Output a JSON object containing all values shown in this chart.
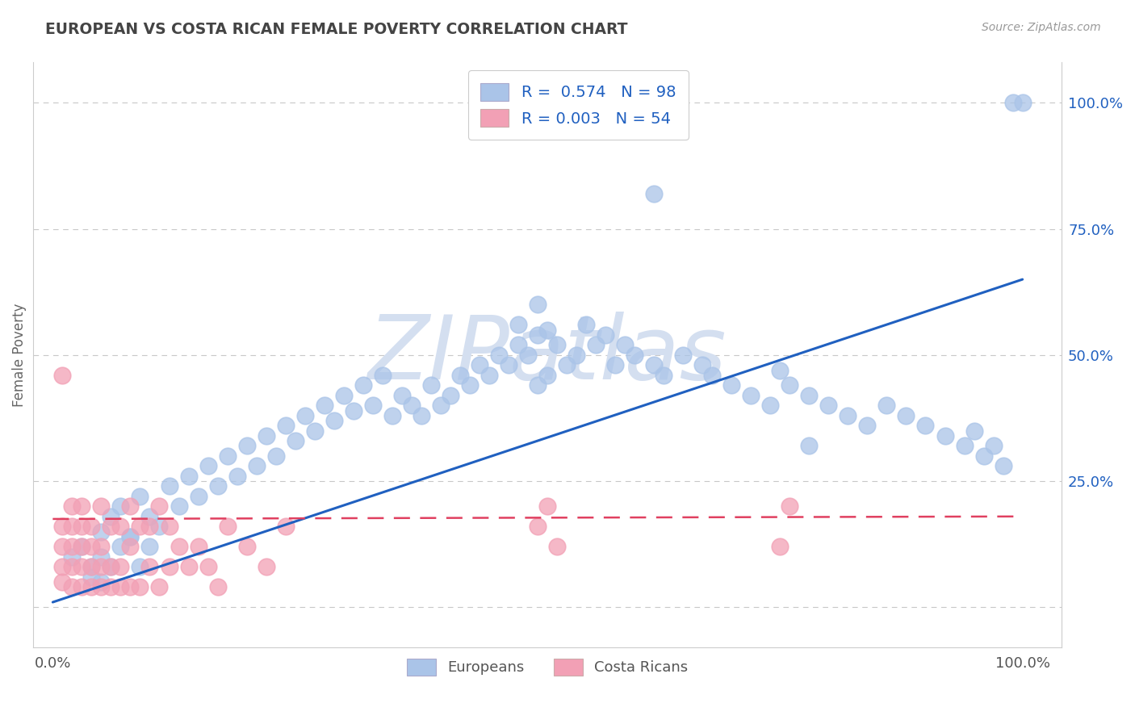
{
  "title": "EUROPEAN VS COSTA RICAN FEMALE POVERTY CORRELATION CHART",
  "source": "Source: ZipAtlas.com",
  "ylabel": "Female Poverty",
  "european_R": 0.574,
  "european_N": 98,
  "costarican_R": 0.003,
  "costarican_N": 54,
  "european_color": "#aac4e8",
  "costarican_color": "#f2a0b5",
  "european_line_color": "#2060c0",
  "costarican_line_color": "#e04060",
  "background_color": "#ffffff",
  "grid_color": "#c8c8c8",
  "title_color": "#444444",
  "watermark_color": "#d4dff0",
  "legend_blue_color": "#2060c0",
  "right_tick_color": "#2060c0",
  "xlim": [
    0.0,
    1.0
  ],
  "ylim": [
    -0.08,
    1.08
  ],
  "eu_line_x0": 0.0,
  "eu_line_y0": 0.01,
  "eu_line_x1": 1.0,
  "eu_line_y1": 0.65,
  "cr_line_x0": 0.0,
  "cr_line_y0": 0.175,
  "cr_line_x1": 1.0,
  "cr_line_y1": 0.18,
  "eu_scatter_x": [
    0.02,
    0.03,
    0.04,
    0.05,
    0.05,
    0.06,
    0.07,
    0.08,
    0.09,
    0.1,
    0.11,
    0.12,
    0.13,
    0.14,
    0.15,
    0.16,
    0.17,
    0.18,
    0.19,
    0.2,
    0.21,
    0.22,
    0.23,
    0.24,
    0.25,
    0.26,
    0.27,
    0.28,
    0.29,
    0.3,
    0.31,
    0.32,
    0.33,
    0.34,
    0.35,
    0.36,
    0.37,
    0.38,
    0.39,
    0.4,
    0.41,
    0.42,
    0.43,
    0.44,
    0.45,
    0.46,
    0.47,
    0.48,
    0.49,
    0.5,
    0.5,
    0.51,
    0.52,
    0.53,
    0.54,
    0.55,
    0.56,
    0.57,
    0.58,
    0.59,
    0.6,
    0.62,
    0.63,
    0.65,
    0.67,
    0.68,
    0.7,
    0.72,
    0.74,
    0.76,
    0.78,
    0.8,
    0.82,
    0.84,
    0.86,
    0.88,
    0.9,
    0.92,
    0.94,
    0.95,
    0.96,
    0.97,
    0.98,
    0.99,
    1.0,
    0.04,
    0.05,
    0.06,
    0.07,
    0.08,
    0.09,
    0.1,
    0.5,
    0.75,
    0.78,
    0.62,
    0.48,
    0.51
  ],
  "eu_scatter_y": [
    0.1,
    0.12,
    0.08,
    0.15,
    0.05,
    0.18,
    0.2,
    0.14,
    0.22,
    0.18,
    0.16,
    0.24,
    0.2,
    0.26,
    0.22,
    0.28,
    0.24,
    0.3,
    0.26,
    0.32,
    0.28,
    0.34,
    0.3,
    0.36,
    0.33,
    0.38,
    0.35,
    0.4,
    0.37,
    0.42,
    0.39,
    0.44,
    0.4,
    0.46,
    0.38,
    0.42,
    0.4,
    0.38,
    0.44,
    0.4,
    0.42,
    0.46,
    0.44,
    0.48,
    0.46,
    0.5,
    0.48,
    0.52,
    0.5,
    0.54,
    0.44,
    0.46,
    0.52,
    0.48,
    0.5,
    0.56,
    0.52,
    0.54,
    0.48,
    0.52,
    0.5,
    0.48,
    0.46,
    0.5,
    0.48,
    0.46,
    0.44,
    0.42,
    0.4,
    0.44,
    0.42,
    0.4,
    0.38,
    0.36,
    0.4,
    0.38,
    0.36,
    0.34,
    0.32,
    0.35,
    0.3,
    0.32,
    0.28,
    1.0,
    1.0,
    0.06,
    0.1,
    0.08,
    0.12,
    0.14,
    0.08,
    0.12,
    0.6,
    0.47,
    0.32,
    0.82,
    0.56,
    0.55
  ],
  "cr_scatter_x": [
    0.01,
    0.01,
    0.01,
    0.01,
    0.02,
    0.02,
    0.02,
    0.02,
    0.02,
    0.03,
    0.03,
    0.03,
    0.03,
    0.03,
    0.04,
    0.04,
    0.04,
    0.04,
    0.05,
    0.05,
    0.05,
    0.05,
    0.06,
    0.06,
    0.06,
    0.07,
    0.07,
    0.07,
    0.08,
    0.08,
    0.08,
    0.09,
    0.09,
    0.1,
    0.1,
    0.11,
    0.11,
    0.12,
    0.12,
    0.13,
    0.14,
    0.15,
    0.16,
    0.17,
    0.18,
    0.2,
    0.22,
    0.24,
    0.5,
    0.51,
    0.52,
    0.75,
    0.76,
    0.01
  ],
  "cr_scatter_y": [
    0.05,
    0.08,
    0.12,
    0.16,
    0.04,
    0.08,
    0.12,
    0.16,
    0.2,
    0.04,
    0.08,
    0.12,
    0.16,
    0.2,
    0.04,
    0.08,
    0.12,
    0.16,
    0.04,
    0.08,
    0.12,
    0.2,
    0.04,
    0.08,
    0.16,
    0.04,
    0.08,
    0.16,
    0.04,
    0.12,
    0.2,
    0.04,
    0.16,
    0.08,
    0.16,
    0.04,
    0.2,
    0.08,
    0.16,
    0.12,
    0.08,
    0.12,
    0.08,
    0.04,
    0.16,
    0.12,
    0.08,
    0.16,
    0.16,
    0.2,
    0.12,
    0.12,
    0.2,
    0.46
  ]
}
